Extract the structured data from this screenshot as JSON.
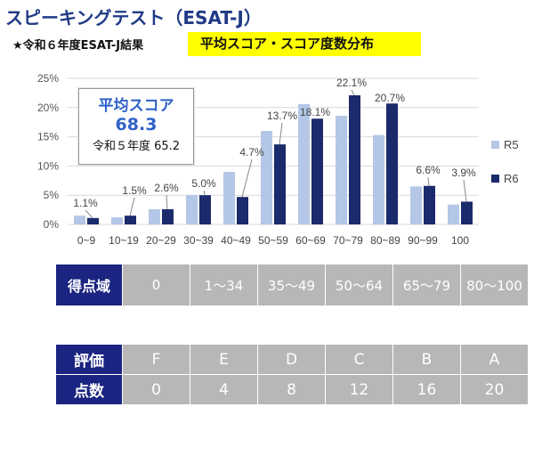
{
  "header": {
    "title": "スピーキングテスト（ESAT-J）",
    "subtitle": "★令和６年度ESAT-J結果",
    "highlight": "平均スコア・スコア度数分布"
  },
  "score_box": {
    "label": "平均スコア",
    "value": "68.3",
    "previous": "令和５年度 65.2"
  },
  "colors": {
    "R5": "#b4c7e7",
    "R6": "#1b2a6b",
    "table_head": "#1b2480",
    "table_cell": "#b7b7b7",
    "arrow": "#e5007e"
  },
  "chart_data": {
    "type": "bar",
    "categories": [
      "0~9",
      "10~19",
      "20~29",
      "30~39",
      "40~49",
      "50~59",
      "60~69",
      "70~79",
      "80~89",
      "90~99",
      "100"
    ],
    "series": [
      {
        "name": "R5",
        "values": [
          1.5,
          1.2,
          2.6,
          5.0,
          9.0,
          16.0,
          20.6,
          18.6,
          15.3,
          6.5,
          3.4
        ]
      },
      {
        "name": "R6",
        "values": [
          1.1,
          1.5,
          2.6,
          5.0,
          4.7,
          13.7,
          18.1,
          22.1,
          20.7,
          6.6,
          3.9
        ]
      }
    ],
    "data_labels": [
      "1.1%",
      "1.5%",
      "2.6%",
      "5.0%",
      "4.7%",
      "13.7%",
      "18.1%",
      "22.1%",
      "20.7%",
      "6.6%",
      "3.9%"
    ],
    "yticks": [
      "0%",
      "5%",
      "10%",
      "15%",
      "20%",
      "25%"
    ],
    "ylim": [
      0,
      25
    ],
    "legend_position": "right",
    "grid": true
  },
  "score_table": {
    "row_label": "得点域",
    "ranges": [
      "0",
      "1～34",
      "35～49",
      "50～64",
      "65～79",
      "80～100"
    ]
  },
  "eval_table": {
    "grade_label": "評価",
    "grades": [
      "F",
      "E",
      "D",
      "C",
      "B",
      "A"
    ],
    "points_label": "点数",
    "points": [
      "0",
      "4",
      "8",
      "12",
      "16",
      "20"
    ]
  }
}
